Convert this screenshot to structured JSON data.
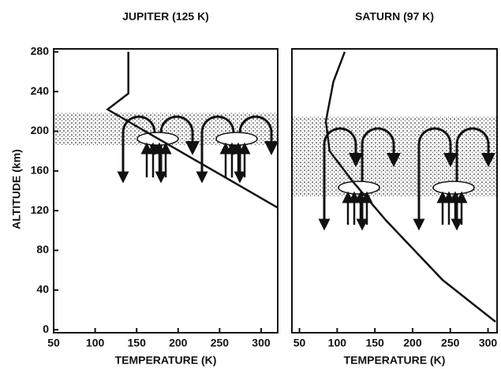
{
  "chart_data": [
    {
      "type": "line",
      "title": "JUPITER (125 K)",
      "xlabel": "TEMPERATURE (K)",
      "ylabel": "ALTITUDE (km)",
      "x": [
        140,
        140,
        115,
        150,
        320
      ],
      "values": [
        280,
        238,
        222,
        205,
        123
      ],
      "color": "#111111",
      "xlim": [
        50,
        320
      ],
      "ylim": [
        -3,
        283
      ],
      "xticks": [
        50,
        100,
        150,
        200,
        250,
        300
      ],
      "yticks": [
        0,
        40,
        80,
        120,
        160,
        200,
        240,
        280
      ]
    },
    {
      "type": "line",
      "title": "SATURN (97 K)",
      "xlabel": "TEMPERATURE (K)",
      "x": [
        110,
        95,
        85,
        90,
        120,
        165,
        240,
        310
      ],
      "values": [
        280,
        250,
        210,
        180,
        150,
        110,
        50,
        8
      ],
      "color": "#111111",
      "xlim": [
        40,
        312
      ],
      "ylim": [
        -3,
        283
      ],
      "xticks": [
        50,
        100,
        150,
        200,
        250,
        300
      ]
    }
  ]
}
